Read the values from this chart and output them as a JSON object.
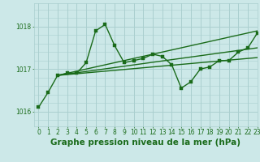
{
  "background_color": "#cce8e8",
  "grid_color": "#aacfcf",
  "line_color": "#1a6b1a",
  "title": "Graphe pression niveau de la mer (hPa)",
  "xlim": [
    -0.5,
    23
  ],
  "ylim": [
    1015.65,
    1018.55
  ],
  "yticks": [
    1016,
    1017,
    1018
  ],
  "xticks": [
    0,
    1,
    2,
    3,
    4,
    5,
    6,
    7,
    8,
    9,
    10,
    11,
    12,
    13,
    14,
    15,
    16,
    17,
    18,
    19,
    20,
    21,
    22,
    23
  ],
  "series_main": {
    "x": [
      0,
      1,
      2,
      3,
      4,
      5,
      6,
      7,
      8,
      9,
      10,
      11,
      12,
      13,
      14,
      15,
      16,
      17,
      18,
      19,
      20,
      21,
      22,
      23
    ],
    "y": [
      1016.1,
      1016.45,
      1016.85,
      1016.9,
      1016.9,
      1017.15,
      1017.9,
      1018.05,
      1017.55,
      1017.15,
      1017.2,
      1017.25,
      1017.35,
      1017.3,
      1017.1,
      1016.55,
      1016.7,
      1017.0,
      1017.05,
      1017.2,
      1017.2,
      1017.4,
      1017.5,
      1017.85
    ]
  },
  "series_trend": [
    {
      "x": [
        2,
        23
      ],
      "y": [
        1016.85,
        1017.9
      ]
    },
    {
      "x": [
        2,
        23
      ],
      "y": [
        1016.85,
        1017.5
      ]
    },
    {
      "x": [
        2,
        23
      ],
      "y": [
        1016.85,
        1017.27
      ]
    }
  ],
  "title_fontsize": 7.5,
  "tick_fontsize": 5.5,
  "title_color": "#1a6b1a",
  "tick_color": "#1a6b1a",
  "linewidth": 1.0,
  "markersize": 2.5
}
